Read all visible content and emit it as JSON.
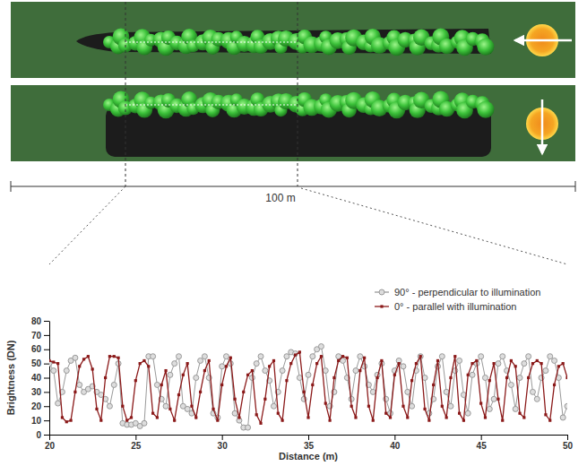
{
  "chart_data": {
    "type": "line",
    "xlabel": "Distance (m)",
    "ylabel": "Brightness (DN)",
    "annotations": [
      "100 m"
    ],
    "xlim": [
      20,
      50
    ],
    "xticks": [
      20,
      25,
      30,
      35,
      40,
      45,
      50
    ],
    "ylim": [
      0,
      80
    ],
    "yticks": [
      0,
      10,
      20,
      30,
      40,
      50,
      60,
      70,
      80
    ],
    "grid": false,
    "legend": "upper right",
    "x": [
      20,
      20.25,
      20.5,
      20.75,
      21,
      21.25,
      21.5,
      21.75,
      22,
      22.25,
      22.5,
      22.75,
      23,
      23.25,
      23.5,
      23.75,
      24,
      24.25,
      24.5,
      24.75,
      25,
      25.25,
      25.5,
      25.75,
      26,
      26.25,
      26.5,
      26.75,
      27,
      27.25,
      27.5,
      27.75,
      28,
      28.25,
      28.5,
      28.75,
      29,
      29.25,
      29.5,
      29.75,
      30,
      30.25,
      30.5,
      30.75,
      31,
      31.25,
      31.5,
      31.75,
      32,
      32.25,
      32.5,
      32.75,
      33,
      33.25,
      33.5,
      33.75,
      34,
      34.25,
      34.5,
      34.75,
      35,
      35.25,
      35.5,
      35.75,
      36,
      36.25,
      36.5,
      36.75,
      37,
      37.25,
      37.5,
      37.75,
      38,
      38.25,
      38.5,
      38.75,
      39,
      39.25,
      39.5,
      39.75,
      40,
      40.25,
      40.5,
      40.75,
      41,
      41.25,
      41.5,
      41.75,
      42,
      42.25,
      42.5,
      42.75,
      43,
      43.25,
      43.5,
      43.75,
      44,
      44.25,
      44.5,
      44.75,
      45,
      45.25,
      45.5,
      45.75,
      46,
      46.25,
      46.5,
      46.75,
      47,
      47.25,
      47.5,
      47.75,
      48,
      48.25,
      48.5,
      48.75,
      49,
      49.25,
      49.5,
      49.75,
      50
    ],
    "series": [
      {
        "name": "90° - perpendicular to illumination",
        "color": "#999999",
        "marker": "circle",
        "values": [
          50,
          45,
          22,
          30,
          45,
          52,
          54,
          35,
          30,
          32,
          34,
          30,
          28,
          25,
          20,
          35,
          50,
          8,
          7,
          7,
          8,
          6,
          8,
          55,
          55,
          35,
          25,
          20,
          42,
          50,
          55,
          20,
          18,
          15,
          40,
          52,
          55,
          40,
          15,
          12,
          48,
          55,
          50,
          15,
          10,
          5,
          5,
          40,
          50,
          55,
          45,
          38,
          20,
          30,
          45,
          55,
          58,
          57,
          40,
          25,
          42,
          55,
          60,
          62,
          45,
          20,
          30,
          55,
          52,
          40,
          25,
          45,
          55,
          48,
          35,
          30,
          42,
          50,
          25,
          15,
          45,
          52,
          48,
          30,
          20,
          45,
          55,
          40,
          15,
          25,
          48,
          55,
          30,
          20,
          45,
          52,
          28,
          15,
          42,
          50,
          55,
          40,
          18,
          25,
          50,
          55,
          45,
          35,
          18,
          40,
          50,
          55,
          30,
          25,
          40,
          45,
          55,
          52,
          40,
          12,
          20
        ]
      },
      {
        "name": "0° - parallel with illumination",
        "color": "#8b1a1a",
        "marker": "square",
        "values": [
          52,
          51,
          50,
          12,
          9,
          10,
          30,
          48,
          53,
          55,
          46,
          18,
          10,
          40,
          55,
          55,
          54,
          20,
          10,
          12,
          38,
          50,
          52,
          48,
          15,
          12,
          35,
          45,
          18,
          10,
          28,
          42,
          50,
          20,
          12,
          30,
          45,
          52,
          18,
          10,
          35,
          48,
          54,
          25,
          12,
          30,
          42,
          45,
          14,
          8,
          25,
          48,
          52,
          15,
          10,
          38,
          50,
          56,
          58,
          30,
          12,
          35,
          50,
          55,
          22,
          10,
          40,
          52,
          55,
          54,
          20,
          12,
          45,
          54,
          20,
          10,
          40,
          52,
          15,
          12,
          42,
          50,
          20,
          12,
          38,
          50,
          55,
          18,
          10,
          35,
          52,
          20,
          12,
          40,
          55,
          15,
          10,
          42,
          50,
          52,
          22,
          12,
          38,
          50,
          25,
          10,
          40,
          52,
          48,
          15,
          12,
          40,
          50,
          52,
          50,
          14,
          10,
          35,
          48,
          50,
          40
        ]
      }
    ]
  }
}
